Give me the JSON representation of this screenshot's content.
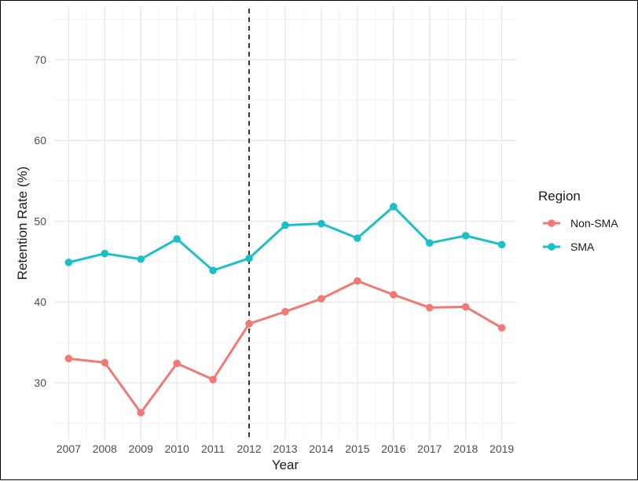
{
  "chart_data": {
    "type": "line",
    "x": [
      2007,
      2008,
      2009,
      2010,
      2011,
      2012,
      2013,
      2014,
      2015,
      2016,
      2017,
      2018,
      2019
    ],
    "series": [
      {
        "name": "Non-SMA",
        "color": "#F07A73",
        "values": [
          33.0,
          32.5,
          26.3,
          32.4,
          30.4,
          37.3,
          38.8,
          40.4,
          42.6,
          40.9,
          39.3,
          39.4,
          36.8
        ]
      },
      {
        "name": "SMA",
        "color": "#1ABFC8",
        "values": [
          44.9,
          46.0,
          45.3,
          47.8,
          43.9,
          45.4,
          49.5,
          49.7,
          47.9,
          51.8,
          47.3,
          48.2,
          47.1
        ]
      }
    ],
    "xlabel": "Year",
    "ylabel": "Retention Rate (%)",
    "yticks": [
      30,
      40,
      50,
      60,
      70
    ],
    "ylim": [
      23.0,
      76.5
    ],
    "xlim": [
      2006.6,
      2019.4
    ],
    "grid": true,
    "reference_line": {
      "x": 2012,
      "style": "dashed",
      "color": "#333333"
    },
    "legend": {
      "title": "Region",
      "placement": "right"
    }
  }
}
